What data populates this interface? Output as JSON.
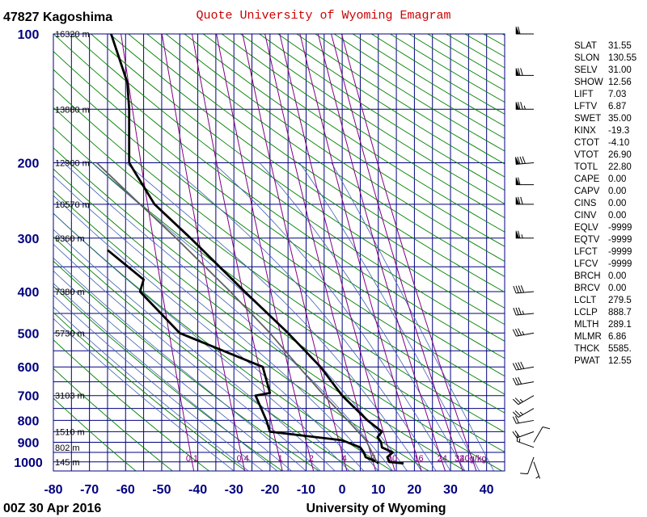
{
  "station_label": "47827  Kagoshima",
  "title": "Quote University of Wyoming Emagram",
  "footer_left": "00Z 30 Apr 2016",
  "footer_right": "University of Wyoming",
  "chart_data": {
    "type": "line",
    "x_axis": {
      "ticks": [
        -80,
        -70,
        -60,
        -50,
        -40,
        -30,
        -20,
        -10,
        0,
        10,
        20,
        30,
        40
      ],
      "range": [
        -80,
        45
      ],
      "unit": "C"
    },
    "y_axis": {
      "scale": "log",
      "ticks": [
        100,
        200,
        300,
        400,
        500,
        600,
        700,
        800,
        900,
        1000
      ],
      "range": [
        100,
        1050
      ],
      "unit": "hPa"
    },
    "height_labels": [
      {
        "p": 100,
        "label": "16320 m"
      },
      {
        "p": 150,
        "label": "13880 m"
      },
      {
        "p": 200,
        "label": "12900 m"
      },
      {
        "p": 250,
        "label": "10570 m"
      },
      {
        "p": 300,
        "label": "9360 m"
      },
      {
        "p": 400,
        "label": "7380 m"
      },
      {
        "p": 500,
        "label": "5730 m"
      },
      {
        "p": 700,
        "label": "3103 m"
      },
      {
        "p": 850,
        "label": "1510 m"
      },
      {
        "p": 925,
        "label": "802 m"
      },
      {
        "p": 1000,
        "label": "145 m"
      }
    ],
    "mixing_ratio_labels": [
      "0.1",
      "0.4",
      "1",
      "2",
      "4",
      "7",
      "10",
      "16",
      "24",
      "32",
      "40g/kg"
    ],
    "mixing_ratio_values": [
      0.1,
      0.4,
      1,
      2,
      4,
      7,
      10,
      16,
      24,
      32,
      40
    ],
    "series": [
      {
        "name": "",
        "color": "#000000",
        "points": [
          {
            "p": 1008,
            "t": 17
          },
          {
            "p": 1000,
            "t": 13
          },
          {
            "p": 975,
            "t": 12.5
          },
          {
            "p": 950,
            "t": 14
          },
          {
            "p": 925,
            "t": 11
          },
          {
            "p": 900,
            "t": 10.8
          },
          {
            "p": 875,
            "t": 9.8
          },
          {
            "p": 850,
            "t": 11
          },
          {
            "p": 800,
            "t": 7
          },
          {
            "p": 700,
            "t": 0
          },
          {
            "p": 600,
            "t": -6
          },
          {
            "p": 500,
            "t": -15
          },
          {
            "p": 400,
            "t": -27
          },
          {
            "p": 300,
            "t": -42
          },
          {
            "p": 250,
            "t": -52
          },
          {
            "p": 200,
            "t": -59
          },
          {
            "p": 150,
            "t": -59
          },
          {
            "p": 130,
            "t": -59.5
          },
          {
            "p": 100,
            "t": -64
          }
        ]
      },
      {
        "name": "",
        "color": "#000000",
        "points": [
          {
            "p": 1008,
            "t": 10
          },
          {
            "p": 1000,
            "t": 9.6
          },
          {
            "p": 975,
            "t": 6.5
          },
          {
            "p": 950,
            "t": 6
          },
          {
            "p": 925,
            "t": 5
          },
          {
            "p": 890,
            "t": 0
          },
          {
            "p": 850,
            "t": -20
          },
          {
            "p": 800,
            "t": -21
          },
          {
            "p": 700,
            "t": -24
          },
          {
            "p": 690,
            "t": -20
          },
          {
            "p": 600,
            "t": -22
          },
          {
            "p": 500,
            "t": -45
          },
          {
            "p": 400,
            "t": -56
          },
          {
            "p": 375,
            "t": -55
          },
          {
            "p": 320,
            "t": -65
          }
        ]
      },
      {
        "name": "",
        "color": "#606060",
        "points": [
          {
            "p": 1000,
            "t": 9.6
          },
          {
            "p": 888.7,
            "t": 6.5
          },
          {
            "p": 800,
            "t": 1.5
          },
          {
            "p": 700,
            "t": -5
          },
          {
            "p": 600,
            "t": -12
          },
          {
            "p": 500,
            "t": -20
          },
          {
            "p": 400,
            "t": -31
          },
          {
            "p": 300,
            "t": -46
          },
          {
            "p": 250,
            "t": -56
          },
          {
            "p": 200,
            "t": -68
          }
        ]
      }
    ],
    "wind_barbs": [
      {
        "p": 1000,
        "speed_kt": 5,
        "dir_deg": 160
      },
      {
        "p": 975,
        "speed_kt": 10,
        "dir_deg": 200
      },
      {
        "p": 925,
        "speed_kt": 15,
        "dir_deg": 290
      },
      {
        "p": 900,
        "speed_kt": 10,
        "dir_deg": 30
      },
      {
        "p": 850,
        "speed_kt": 20,
        "dir_deg": 250
      },
      {
        "p": 800,
        "speed_kt": 20,
        "dir_deg": 260
      },
      {
        "p": 750,
        "speed_kt": 25,
        "dir_deg": 240
      },
      {
        "p": 700,
        "speed_kt": 25,
        "dir_deg": 240
      },
      {
        "p": 650,
        "speed_kt": 30,
        "dir_deg": 260
      },
      {
        "p": 600,
        "speed_kt": 40,
        "dir_deg": 260
      },
      {
        "p": 500,
        "speed_kt": 35,
        "dir_deg": 260
      },
      {
        "p": 450,
        "speed_kt": 35,
        "dir_deg": 265
      },
      {
        "p": 400,
        "speed_kt": 40,
        "dir_deg": 265
      },
      {
        "p": 300,
        "speed_kt": 65,
        "dir_deg": 270
      },
      {
        "p": 250,
        "speed_kt": 70,
        "dir_deg": 270
      },
      {
        "p": 225,
        "speed_kt": 60,
        "dir_deg": 270
      },
      {
        "p": 200,
        "speed_kt": 80,
        "dir_deg": 265
      },
      {
        "p": 150,
        "speed_kt": 75,
        "dir_deg": 270
      },
      {
        "p": 125,
        "speed_kt": 70,
        "dir_deg": 270
      },
      {
        "p": 100,
        "speed_kt": 60,
        "dir_deg": 270
      }
    ]
  },
  "indices": [
    {
      "name": "SLAT",
      "value": "31.55"
    },
    {
      "name": "SLON",
      "value": "130.55"
    },
    {
      "name": "SELV",
      "value": "31.00"
    },
    {
      "name": "SHOW",
      "value": "12.56"
    },
    {
      "name": "LIFT",
      "value": "7.03"
    },
    {
      "name": "LFTV",
      "value": "6.87"
    },
    {
      "name": "SWET",
      "value": "35.00"
    },
    {
      "name": "KINX",
      "value": "-19.3"
    },
    {
      "name": "CTOT",
      "value": "-4.10"
    },
    {
      "name": "VTOT",
      "value": "26.90"
    },
    {
      "name": "TOTL",
      "value": "22.80"
    },
    {
      "name": "CAPE",
      "value": "0.00"
    },
    {
      "name": "CAPV",
      "value": "0.00"
    },
    {
      "name": "CINS",
      "value": "0.00"
    },
    {
      "name": "CINV",
      "value": "0.00"
    },
    {
      "name": "EQLV",
      "value": "-9999"
    },
    {
      "name": "EQTV",
      "value": "-9999"
    },
    {
      "name": "LFCT",
      "value": "-9999"
    },
    {
      "name": "LFCV",
      "value": "-9999"
    },
    {
      "name": "BRCH",
      "value": "0.00"
    },
    {
      "name": "BRCV",
      "value": "0.00"
    },
    {
      "name": "LCLT",
      "value": "279.5"
    },
    {
      "name": "LCLP",
      "value": "888.7"
    },
    {
      "name": "MLTH",
      "value": "289.1"
    },
    {
      "name": "MLMR",
      "value": "6.86"
    },
    {
      "name": "THCK",
      "value": "5585."
    },
    {
      "name": "PWAT",
      "value": "12.55"
    }
  ]
}
